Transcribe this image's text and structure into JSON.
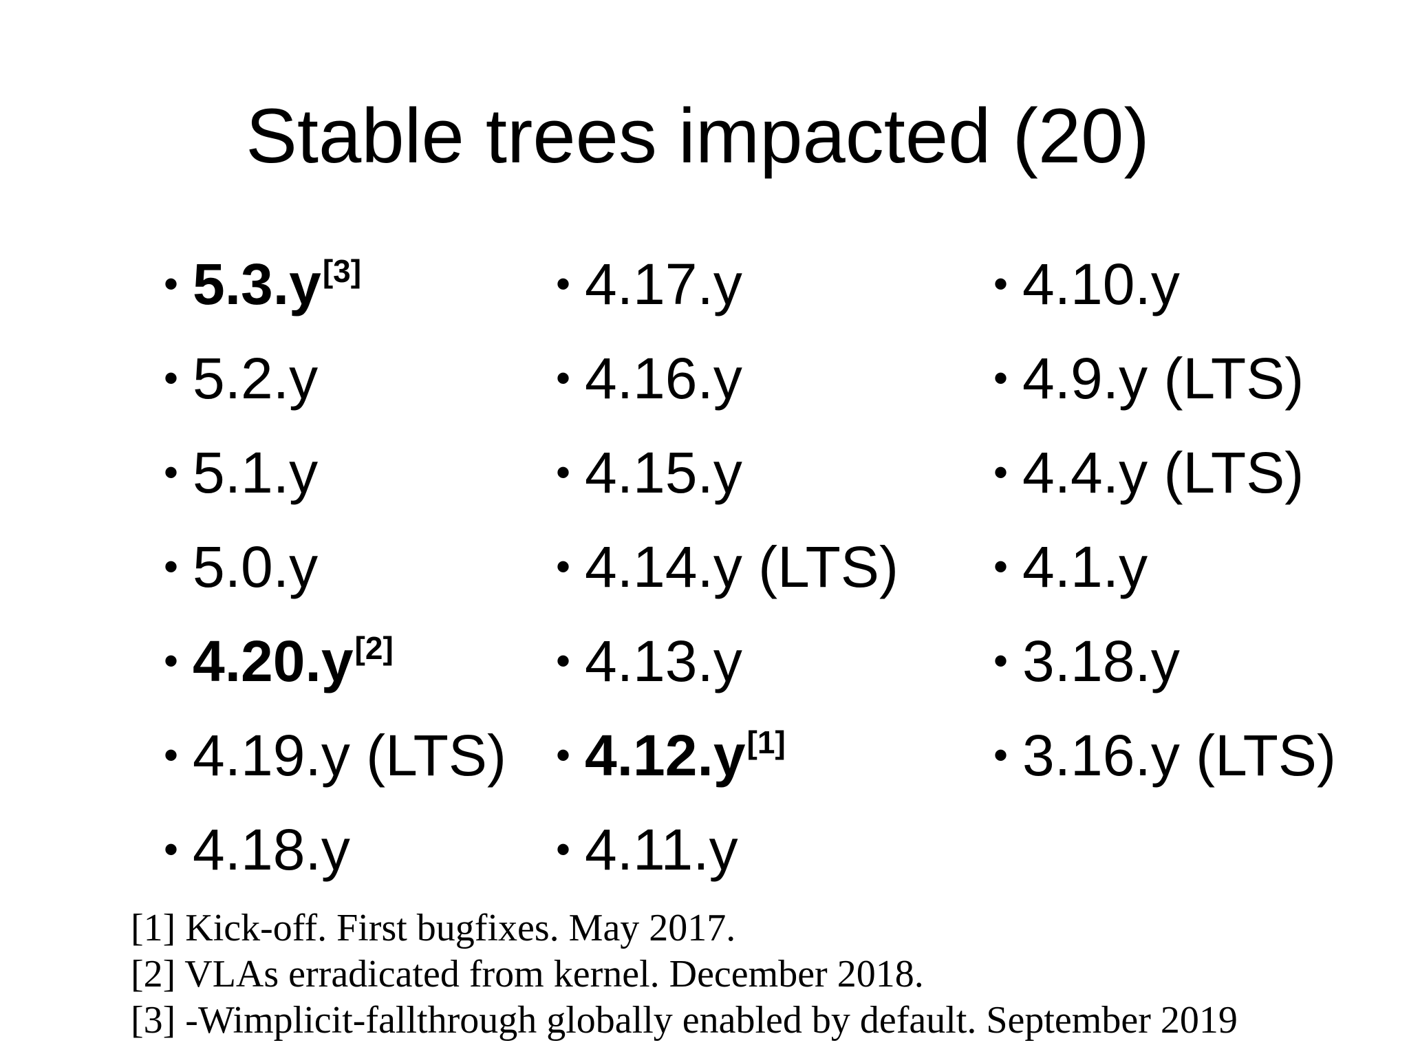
{
  "slide": {
    "title": "Stable trees impacted (20)",
    "bullet": "•",
    "columns": [
      {
        "items": [
          {
            "label": "5.3.y",
            "ref": "[3]",
            "bold": true
          },
          {
            "label": "5.2.y",
            "ref": "",
            "bold": false
          },
          {
            "label": "5.1.y",
            "ref": "",
            "bold": false
          },
          {
            "label": "5.0.y",
            "ref": "",
            "bold": false
          },
          {
            "label": "4.20.y",
            "ref": "[2]",
            "bold": true
          },
          {
            "label": "4.19.y (LTS)",
            "ref": "",
            "bold": false
          },
          {
            "label": "4.18.y",
            "ref": "",
            "bold": false
          }
        ]
      },
      {
        "items": [
          {
            "label": "4.17.y",
            "ref": "",
            "bold": false
          },
          {
            "label": "4.16.y",
            "ref": "",
            "bold": false
          },
          {
            "label": "4.15.y",
            "ref": "",
            "bold": false
          },
          {
            "label": "4.14.y (LTS)",
            "ref": "",
            "bold": false
          },
          {
            "label": "4.13.y",
            "ref": "",
            "bold": false
          },
          {
            "label": "4.12.y",
            "ref": "[1]",
            "bold": true
          },
          {
            "label": "4.11.y",
            "ref": "",
            "bold": false
          }
        ]
      },
      {
        "items": [
          {
            "label": "4.10.y",
            "ref": "",
            "bold": false
          },
          {
            "label": "4.9.y (LTS)",
            "ref": "",
            "bold": false
          },
          {
            "label": "4.4.y (LTS)",
            "ref": "",
            "bold": false
          },
          {
            "label": "4.1.y",
            "ref": "",
            "bold": false
          },
          {
            "label": "3.18.y",
            "ref": "",
            "bold": false
          },
          {
            "label": "3.16.y (LTS)",
            "ref": "",
            "bold": false
          }
        ]
      }
    ],
    "footnotes": [
      "[1] Kick-off. First bugfixes. May 2017.",
      "[2] VLAs erradicated from kernel. December 2018.",
      "[3] -Wimplicit-fallthrough globally enabled by default. September 2019"
    ]
  }
}
